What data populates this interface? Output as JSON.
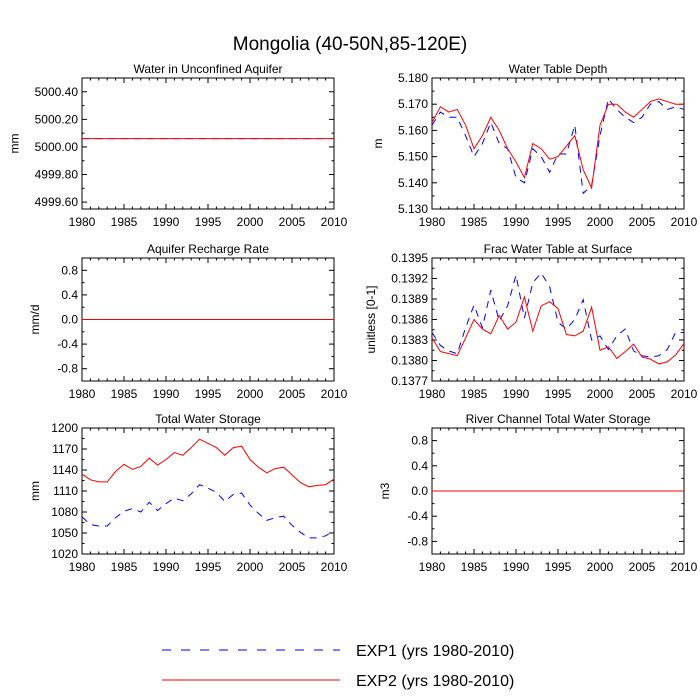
{
  "title": "Mongolia (40-50N,85-120E)",
  "colors": {
    "exp1": "#0000ff",
    "exp2": "#ff0000",
    "axis": "#000000"
  },
  "legend": [
    {
      "key": "exp1",
      "label": "EXP1 (yrs 1980-2010)",
      "style": "dashed"
    },
    {
      "key": "exp2",
      "label": "EXP2 (yrs 1980-2010)",
      "style": "solid"
    }
  ],
  "chart_data": [
    {
      "id": "water-unconfined-aquifer",
      "type": "line",
      "title": "Water in Unconfined Aquifer",
      "ylabel": "mm",
      "xlabel": "",
      "xlim": [
        1980,
        2010
      ],
      "ylim": [
        4999.55,
        5000.5
      ],
      "xticks": [
        1980,
        1985,
        1990,
        1995,
        2000,
        2005,
        2010
      ],
      "xtick_labels": [
        "1980",
        "1985",
        "1990",
        "1995",
        "2000",
        "2005",
        "2010"
      ],
      "yticks": [
        4999.6,
        4999.8,
        5000.0,
        5000.2,
        5000.4
      ],
      "ytick_labels": [
        "4999.60",
        "4999.80",
        "5000.00",
        "5000.20",
        "5000.40"
      ],
      "x": [
        1980,
        2010
      ],
      "series": [
        {
          "name": "EXP1 (yrs 1980-2010)",
          "key": "exp1",
          "values": [
            5000.06,
            5000.06
          ]
        },
        {
          "name": "EXP2 (yrs 1980-2010)",
          "key": "exp2",
          "values": [
            5000.06,
            5000.06
          ]
        }
      ]
    },
    {
      "id": "water-table-depth",
      "type": "line",
      "title": "Water Table Depth",
      "ylabel": "m",
      "xlabel": "",
      "xlim": [
        1980,
        2010
      ],
      "ylim": [
        5.13,
        5.18
      ],
      "xticks": [
        1980,
        1985,
        1990,
        1995,
        2000,
        2005,
        2010
      ],
      "xtick_labels": [
        "1980",
        "1985",
        "1990",
        "1995",
        "2000",
        "2005",
        "2010"
      ],
      "yticks": [
        5.13,
        5.14,
        5.15,
        5.16,
        5.17,
        5.18
      ],
      "ytick_labels": [
        "5.130",
        "5.140",
        "5.150",
        "5.160",
        "5.170",
        "5.180"
      ],
      "x": [
        1980,
        1981,
        1982,
        1983,
        1984,
        1985,
        1986,
        1987,
        1988,
        1989,
        1990,
        1991,
        1992,
        1993,
        1994,
        1995,
        1996,
        1997,
        1998,
        1999,
        2000,
        2001,
        2002,
        2003,
        2004,
        2005,
        2006,
        2007,
        2008,
        2009,
        2010
      ],
      "series": [
        {
          "name": "EXP1 (yrs 1980-2010)",
          "key": "exp1",
          "values": [
            5.162,
            5.167,
            5.165,
            5.165,
            5.158,
            5.15,
            5.155,
            5.163,
            5.155,
            5.153,
            5.142,
            5.14,
            5.153,
            5.15,
            5.144,
            5.151,
            5.151,
            5.162,
            5.136,
            5.139,
            5.158,
            5.172,
            5.168,
            5.165,
            5.163,
            5.165,
            5.17,
            5.171,
            5.168,
            5.169,
            5.168
          ]
        },
        {
          "name": "EXP2 (yrs 1980-2010)",
          "key": "exp2",
          "values": [
            5.163,
            5.169,
            5.167,
            5.168,
            5.162,
            5.153,
            5.158,
            5.165,
            5.16,
            5.153,
            5.148,
            5.142,
            5.155,
            5.153,
            5.149,
            5.15,
            5.154,
            5.158,
            5.145,
            5.138,
            5.162,
            5.17,
            5.17,
            5.167,
            5.165,
            5.168,
            5.171,
            5.172,
            5.171,
            5.17,
            5.17
          ]
        }
      ]
    },
    {
      "id": "aquifer-recharge-rate",
      "type": "line",
      "title": "Aquifer Recharge Rate",
      "ylabel": "mm/d",
      "xlabel": "",
      "xlim": [
        1980,
        2010
      ],
      "ylim": [
        -1.0,
        1.0
      ],
      "xticks": [
        1980,
        1985,
        1990,
        1995,
        2000,
        2005,
        2010
      ],
      "xtick_labels": [
        "1980",
        "1985",
        "1990",
        "1995",
        "2000",
        "2005",
        "2010"
      ],
      "yticks": [
        -0.8,
        -0.4,
        0.0,
        0.4,
        0.8
      ],
      "ytick_labels": [
        "-0.8",
        "-0.4",
        "0.0",
        "0.4",
        "0.8"
      ],
      "x": [
        1980,
        2010
      ],
      "series": [
        {
          "name": "EXP1 (yrs 1980-2010)",
          "key": "exp1",
          "values": [
            0.0,
            0.0
          ]
        },
        {
          "name": "EXP2 (yrs 1980-2010)",
          "key": "exp2",
          "values": [
            0.0,
            0.0
          ]
        }
      ]
    },
    {
      "id": "frac-water-table-surface",
      "type": "line",
      "title": "Frac Water Table at Surface",
      "ylabel": "unitless [0-1]",
      "xlabel": "",
      "xlim": [
        1980,
        2010
      ],
      "ylim": [
        0.1377,
        0.1395
      ],
      "xticks": [
        1980,
        1985,
        1990,
        1995,
        2000,
        2005,
        2010
      ],
      "xtick_labels": [
        "1980",
        "1985",
        "1990",
        "1995",
        "2000",
        "2005",
        "2010"
      ],
      "yticks": [
        0.1377,
        0.138,
        0.1383,
        0.1386,
        0.1389,
        0.1392,
        0.1395
      ],
      "ytick_labels": [
        "0.1377",
        "0.1380",
        "0.1383",
        "0.1386",
        "0.1389",
        "0.1392",
        "0.1395"
      ],
      "x": [
        1980,
        1981,
        1982,
        1983,
        1984,
        1985,
        1986,
        1987,
        1988,
        1989,
        1990,
        1991,
        1992,
        1993,
        1994,
        1995,
        1996,
        1997,
        1998,
        1999,
        2000,
        2001,
        2002,
        2003,
        2004,
        2005,
        2006,
        2007,
        2008,
        2009,
        2010
      ],
      "series": [
        {
          "name": "EXP1 (yrs 1980-2010)",
          "key": "exp1",
          "values": [
            0.13841,
            0.13822,
            0.13814,
            0.1381,
            0.13848,
            0.13881,
            0.13848,
            0.13903,
            0.13858,
            0.1388,
            0.13925,
            0.13862,
            0.13914,
            0.13928,
            0.13908,
            0.13856,
            0.13846,
            0.1386,
            0.13889,
            0.1383,
            0.13836,
            0.13816,
            0.13836,
            0.13846,
            0.13814,
            0.13807,
            0.13805,
            0.13807,
            0.13816,
            0.13841,
            0.13841
          ]
        },
        {
          "name": "EXP2 (yrs 1980-2010)",
          "key": "exp2",
          "values": [
            0.13833,
            0.13813,
            0.1381,
            0.13807,
            0.13833,
            0.1386,
            0.13846,
            0.13839,
            0.13866,
            0.13846,
            0.13856,
            0.13893,
            0.13843,
            0.1388,
            0.13886,
            0.13876,
            0.13838,
            0.13836,
            0.13843,
            0.13878,
            0.13815,
            0.1382,
            0.13803,
            0.13813,
            0.13824,
            0.13805,
            0.13802,
            0.13795,
            0.13798,
            0.13808,
            0.13825
          ]
        }
      ]
    },
    {
      "id": "total-water-storage",
      "type": "line",
      "title": "Total Water Storage",
      "ylabel": "mm",
      "xlabel": "",
      "xlim": [
        1980,
        2010
      ],
      "ylim": [
        1020,
        1200
      ],
      "xticks": [
        1980,
        1985,
        1990,
        1995,
        2000,
        2005,
        2010
      ],
      "xtick_labels": [
        "1980",
        "1985",
        "1990",
        "1995",
        "2000",
        "2005",
        "2010"
      ],
      "yticks": [
        1020,
        1050,
        1080,
        1110,
        1140,
        1170,
        1200
      ],
      "ytick_labels": [
        "1020",
        "1050",
        "1080",
        "1110",
        "1140",
        "1170",
        "1200"
      ],
      "x": [
        1980,
        1981,
        1982,
        1983,
        1984,
        1985,
        1986,
        1987,
        1988,
        1989,
        1990,
        1991,
        1992,
        1993,
        1994,
        1995,
        1996,
        1997,
        1998,
        1999,
        2000,
        2001,
        2002,
        2003,
        2004,
        2005,
        2006,
        2007,
        2008,
        2009,
        2010
      ],
      "series": [
        {
          "name": "EXP1 (yrs 1980-2010)",
          "key": "exp1",
          "values": [
            1073,
            1062,
            1060,
            1060,
            1072,
            1081,
            1085,
            1080,
            1094,
            1082,
            1092,
            1100,
            1096,
            1106,
            1119,
            1114,
            1108,
            1095,
            1105,
            1107,
            1090,
            1078,
            1068,
            1072,
            1074,
            1061,
            1051,
            1043,
            1043,
            1046,
            1053
          ]
        },
        {
          "name": "EXP2 (yrs 1980-2010)",
          "key": "exp2",
          "values": [
            1134,
            1126,
            1123,
            1123,
            1138,
            1148,
            1141,
            1145,
            1157,
            1147,
            1155,
            1165,
            1161,
            1172,
            1184,
            1178,
            1172,
            1161,
            1172,
            1174,
            1155,
            1144,
            1136,
            1142,
            1144,
            1133,
            1122,
            1116,
            1118,
            1119,
            1127
          ]
        }
      ]
    },
    {
      "id": "river-channel-storage",
      "type": "line",
      "title": "River Channel Total Water Storage",
      "ylabel": "m3",
      "xlabel": "",
      "xlim": [
        1980,
        2010
      ],
      "ylim": [
        -1.0,
        1.0
      ],
      "xticks": [
        1980,
        1985,
        1990,
        1995,
        2000,
        2005,
        2010
      ],
      "xtick_labels": [
        "1980",
        "1985",
        "1990",
        "1995",
        "2000",
        "2005",
        "2010"
      ],
      "yticks": [
        -0.8,
        -0.4,
        0.0,
        0.4,
        0.8
      ],
      "ytick_labels": [
        "-0.8",
        "-0.4",
        "0.0",
        "0.4",
        "0.8"
      ],
      "x": [
        1980,
        2010
      ],
      "series": [
        {
          "name": "EXP1 (yrs 1980-2010)",
          "key": "exp1",
          "values": [
            0.0,
            0.0
          ]
        },
        {
          "name": "EXP2 (yrs 1980-2010)",
          "key": "exp2",
          "values": [
            0.0,
            0.0
          ]
        }
      ]
    }
  ]
}
